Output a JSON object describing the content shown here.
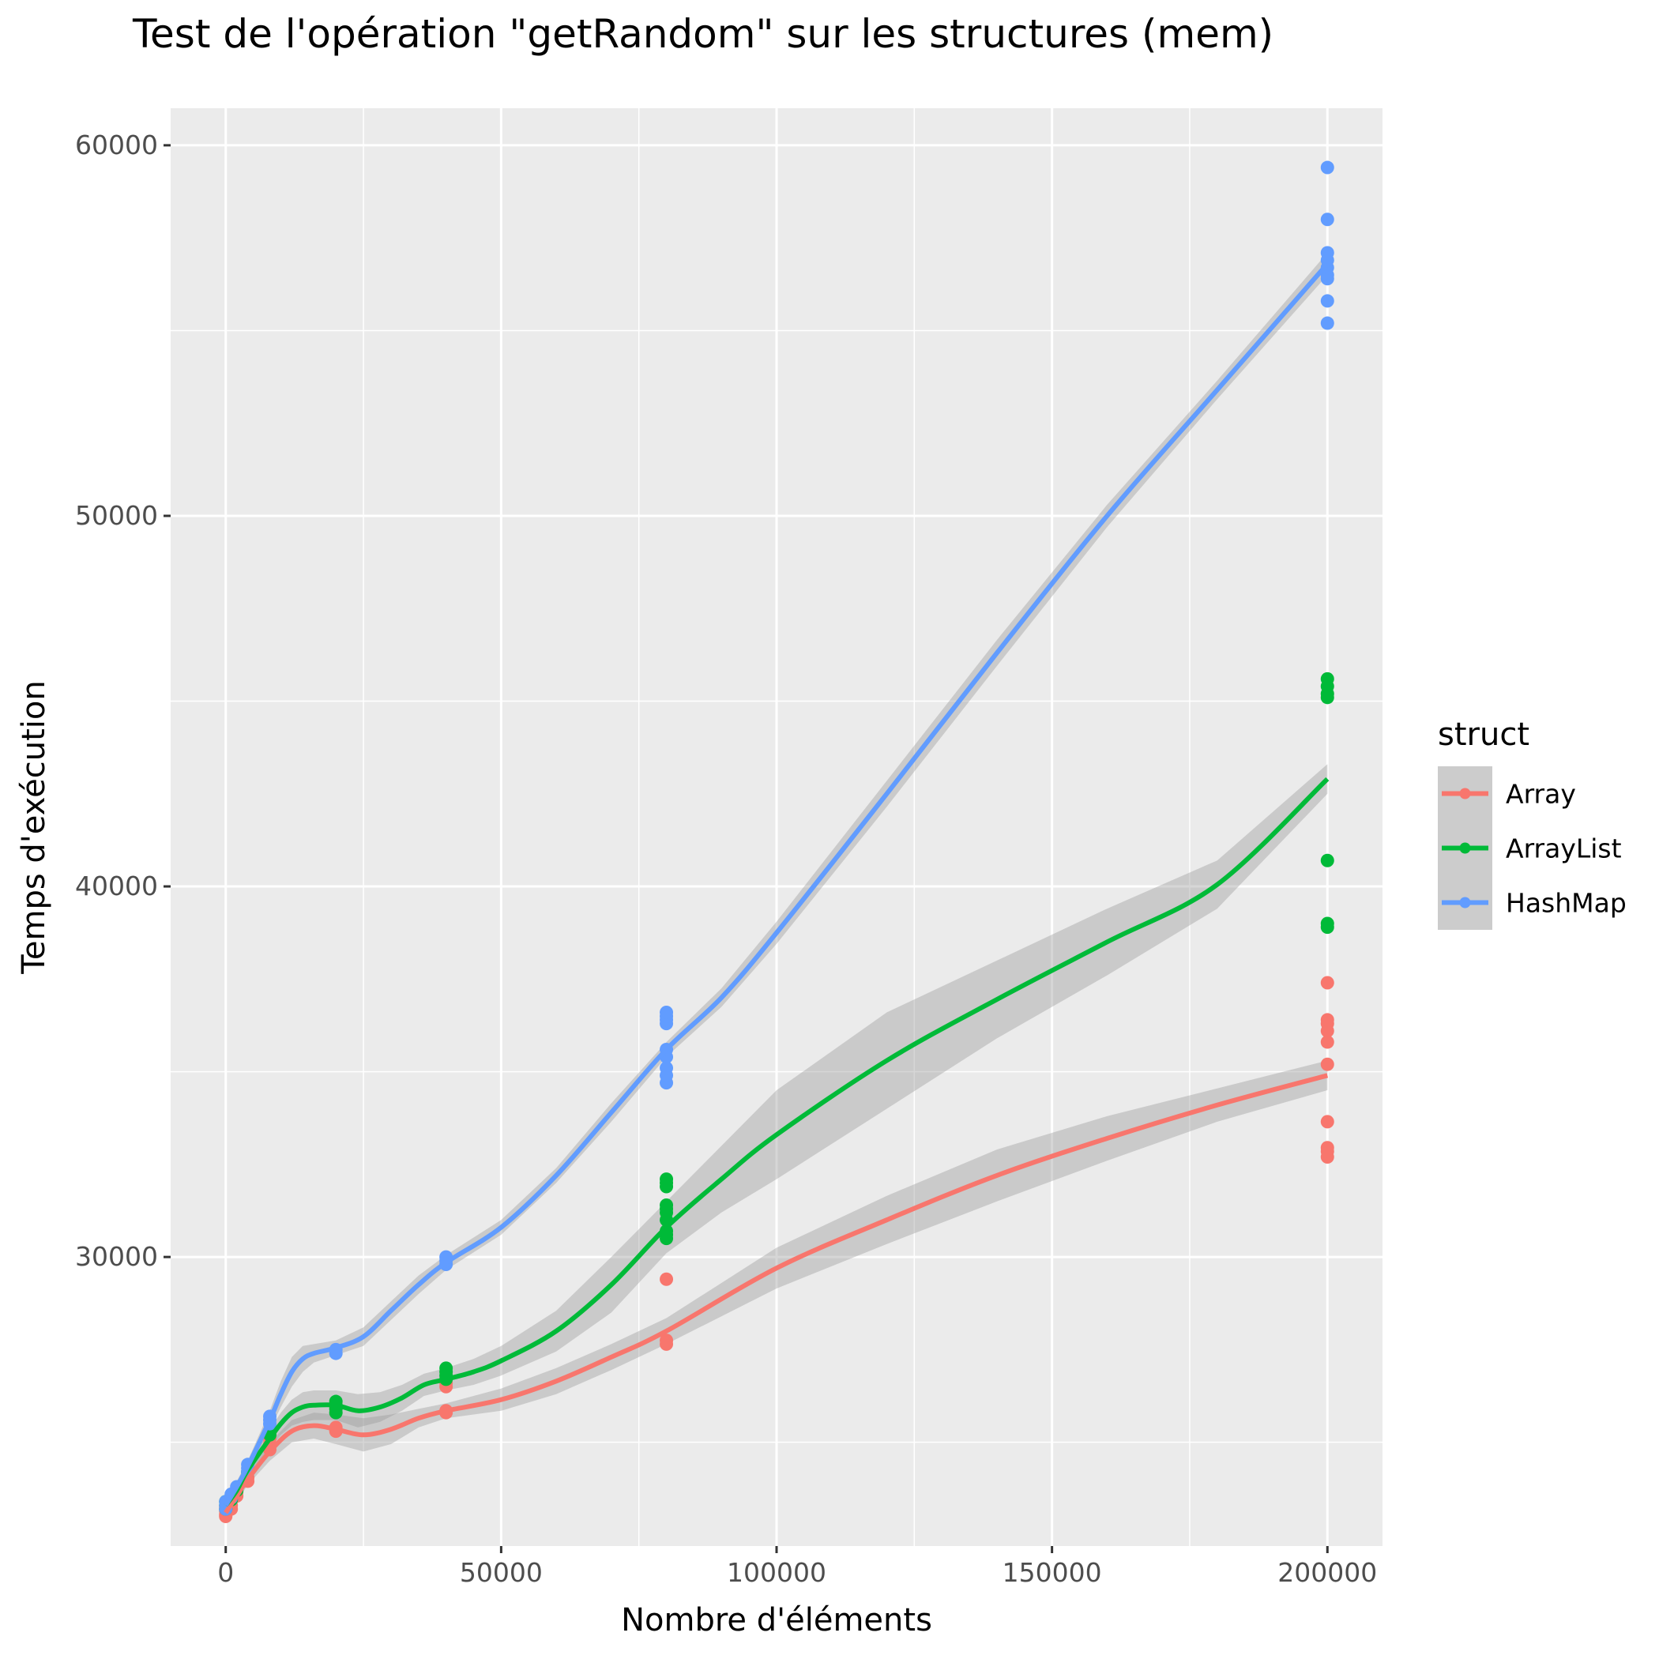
{
  "chart_data": {
    "type": "scatter",
    "title": "Test de l'opération \"getRandom\" sur les structures (mem)",
    "xlabel": "Nombre d'éléments",
    "ylabel": "Temps d'exécution",
    "xlim": [
      -10000,
      210000
    ],
    "ylim": [
      22200,
      61000
    ],
    "x_ticks": [
      0,
      50000,
      100000,
      150000,
      200000
    ],
    "x_tick_labels": [
      "0",
      "50000",
      "100000",
      "150000",
      "200000"
    ],
    "y_ticks": [
      30000,
      40000,
      50000,
      60000
    ],
    "y_tick_labels": [
      "30000",
      "40000",
      "50000",
      "60000"
    ],
    "grid": true,
    "legend": {
      "title": "struct",
      "position": "right"
    },
    "series": [
      {
        "name": "Array",
        "color": "#F8766D",
        "points": [
          [
            0,
            23000
          ],
          [
            0,
            23050
          ],
          [
            0,
            23150
          ],
          [
            0,
            23250
          ],
          [
            1000,
            23200
          ],
          [
            1000,
            23300
          ],
          [
            2000,
            23550
          ],
          [
            2000,
            23650
          ],
          [
            4000,
            23950
          ],
          [
            4000,
            24050
          ],
          [
            8000,
            24800
          ],
          [
            8000,
            24950
          ],
          [
            8000,
            25100
          ],
          [
            20000,
            25300
          ],
          [
            20000,
            25400
          ],
          [
            40000,
            25800
          ],
          [
            40000,
            25850
          ],
          [
            40000,
            26500
          ],
          [
            40000,
            26600
          ],
          [
            80000,
            27650
          ],
          [
            80000,
            27750
          ],
          [
            80000,
            29400
          ],
          [
            200000,
            32700
          ],
          [
            200000,
            32850
          ],
          [
            200000,
            32950
          ],
          [
            200000,
            33650
          ],
          [
            200000,
            35200
          ],
          [
            200000,
            35800
          ],
          [
            200000,
            36100
          ],
          [
            200000,
            36300
          ],
          [
            200000,
            36400
          ],
          [
            200000,
            37400
          ]
        ],
        "smooth": [
          [
            0,
            23100
          ],
          [
            2000,
            23550
          ],
          [
            4000,
            24000
          ],
          [
            8000,
            24750
          ],
          [
            12000,
            25300
          ],
          [
            16000,
            25450
          ],
          [
            20000,
            25350
          ],
          [
            25000,
            25200
          ],
          [
            30000,
            25350
          ],
          [
            35000,
            25650
          ],
          [
            40000,
            25850
          ],
          [
            50000,
            26150
          ],
          [
            60000,
            26650
          ],
          [
            70000,
            27300
          ],
          [
            80000,
            28000
          ],
          [
            100000,
            29700
          ],
          [
            120000,
            31000
          ],
          [
            140000,
            32200
          ],
          [
            160000,
            33200
          ],
          [
            180000,
            34100
          ],
          [
            200000,
            34900
          ]
        ],
        "band": [
          [
            0,
            22950,
            23250
          ],
          [
            2000,
            23400,
            23700
          ],
          [
            4000,
            23850,
            24150
          ],
          [
            8000,
            24500,
            25000
          ],
          [
            12000,
            25000,
            25600
          ],
          [
            16000,
            25100,
            25800
          ],
          [
            20000,
            24950,
            25750
          ],
          [
            25000,
            24750,
            25650
          ],
          [
            30000,
            24950,
            25750
          ],
          [
            35000,
            25400,
            25900
          ],
          [
            40000,
            25650,
            26050
          ],
          [
            50000,
            25850,
            26450
          ],
          [
            60000,
            26300,
            27000
          ],
          [
            70000,
            26950,
            27650
          ],
          [
            80000,
            27650,
            28350
          ],
          [
            100000,
            29150,
            30250
          ],
          [
            120000,
            30350,
            31650
          ],
          [
            140000,
            31500,
            32900
          ],
          [
            160000,
            32600,
            33800
          ],
          [
            180000,
            33650,
            34550
          ],
          [
            200000,
            34500,
            35300
          ]
        ]
      },
      {
        "name": "ArrayList",
        "color": "#00BA38",
        "points": [
          [
            0,
            23200
          ],
          [
            0,
            23300
          ],
          [
            0,
            23400
          ],
          [
            1000,
            23450
          ],
          [
            2000,
            23700
          ],
          [
            4000,
            24200
          ],
          [
            8000,
            25200
          ],
          [
            8000,
            25300
          ],
          [
            20000,
            25800
          ],
          [
            20000,
            25900
          ],
          [
            20000,
            26000
          ],
          [
            20000,
            26100
          ],
          [
            40000,
            26700
          ],
          [
            40000,
            26800
          ],
          [
            40000,
            26900
          ],
          [
            40000,
            27000
          ],
          [
            80000,
            30500
          ],
          [
            80000,
            30600
          ],
          [
            80000,
            30700
          ],
          [
            80000,
            31000
          ],
          [
            80000,
            31200
          ],
          [
            80000,
            31300
          ],
          [
            80000,
            31400
          ],
          [
            80000,
            31900
          ],
          [
            80000,
            32000
          ],
          [
            80000,
            32100
          ],
          [
            200000,
            38900
          ],
          [
            200000,
            39000
          ],
          [
            200000,
            40700
          ],
          [
            200000,
            45100
          ],
          [
            200000,
            45200
          ],
          [
            200000,
            45400
          ],
          [
            200000,
            45600
          ]
        ],
        "smooth": [
          [
            0,
            23300
          ],
          [
            2000,
            23700
          ],
          [
            4000,
            24250
          ],
          [
            8000,
            25100
          ],
          [
            10000,
            25500
          ],
          [
            12000,
            25800
          ],
          [
            14000,
            25950
          ],
          [
            16000,
            26000
          ],
          [
            20000,
            26000
          ],
          [
            24000,
            25850
          ],
          [
            28000,
            25950
          ],
          [
            32000,
            26200
          ],
          [
            36000,
            26550
          ],
          [
            40000,
            26700
          ],
          [
            45000,
            26900
          ],
          [
            50000,
            27200
          ],
          [
            60000,
            28000
          ],
          [
            70000,
            29250
          ],
          [
            80000,
            30800
          ],
          [
            90000,
            32100
          ],
          [
            100000,
            33300
          ],
          [
            120000,
            35300
          ],
          [
            140000,
            36950
          ],
          [
            160000,
            38500
          ],
          [
            180000,
            40050
          ],
          [
            200000,
            42900
          ]
        ],
        "band": [
          [
            0,
            23150,
            23450
          ],
          [
            2000,
            23550,
            23850
          ],
          [
            4000,
            24100,
            24400
          ],
          [
            8000,
            24850,
            25350
          ],
          [
            10000,
            25200,
            25800
          ],
          [
            12000,
            25450,
            26150
          ],
          [
            14000,
            25550,
            26350
          ],
          [
            16000,
            25600,
            26400
          ],
          [
            20000,
            25600,
            26400
          ],
          [
            24000,
            25400,
            26300
          ],
          [
            28000,
            25550,
            26350
          ],
          [
            32000,
            25850,
            26550
          ],
          [
            36000,
            26250,
            26850
          ],
          [
            40000,
            26400,
            27000
          ],
          [
            45000,
            26550,
            27250
          ],
          [
            50000,
            26800,
            27600
          ],
          [
            60000,
            27450,
            28550
          ],
          [
            70000,
            28500,
            30000
          ],
          [
            80000,
            30100,
            31500
          ],
          [
            90000,
            31200,
            33000
          ],
          [
            100000,
            32100,
            34500
          ],
          [
            120000,
            34000,
            36600
          ],
          [
            140000,
            35900,
            38000
          ],
          [
            160000,
            37600,
            39400
          ],
          [
            180000,
            39400,
            40700
          ],
          [
            200000,
            42500,
            43300
          ]
        ]
      },
      {
        "name": "HashMap",
        "color": "#619CFF",
        "points": [
          [
            0,
            23200
          ],
          [
            0,
            23300
          ],
          [
            0,
            23400
          ],
          [
            1000,
            23500
          ],
          [
            1000,
            23600
          ],
          [
            2000,
            23800
          ],
          [
            4000,
            24200
          ],
          [
            4000,
            24300
          ],
          [
            4000,
            24400
          ],
          [
            8000,
            25500
          ],
          [
            8000,
            25600
          ],
          [
            8000,
            25700
          ],
          [
            20000,
            27400
          ],
          [
            20000,
            27500
          ],
          [
            40000,
            29800
          ],
          [
            40000,
            29900
          ],
          [
            40000,
            30000
          ],
          [
            80000,
            34700
          ],
          [
            80000,
            34900
          ],
          [
            80000,
            35100
          ],
          [
            80000,
            35400
          ],
          [
            80000,
            35600
          ],
          [
            80000,
            36300
          ],
          [
            80000,
            36400
          ],
          [
            80000,
            36500
          ],
          [
            80000,
            36600
          ],
          [
            200000,
            55200
          ],
          [
            200000,
            55800
          ],
          [
            200000,
            56400
          ],
          [
            200000,
            56500
          ],
          [
            200000,
            56700
          ],
          [
            200000,
            56900
          ],
          [
            200000,
            57100
          ],
          [
            200000,
            58000
          ],
          [
            200000,
            59400
          ]
        ],
        "smooth": [
          [
            0,
            23300
          ],
          [
            2000,
            23800
          ],
          [
            4000,
            24350
          ],
          [
            8000,
            25600
          ],
          [
            10000,
            26300
          ],
          [
            12000,
            26900
          ],
          [
            14000,
            27250
          ],
          [
            16000,
            27400
          ],
          [
            20000,
            27550
          ],
          [
            25000,
            27850
          ],
          [
            30000,
            28550
          ],
          [
            35000,
            29250
          ],
          [
            40000,
            29850
          ],
          [
            50000,
            30800
          ],
          [
            60000,
            32200
          ],
          [
            70000,
            33900
          ],
          [
            80000,
            35600
          ],
          [
            90000,
            37000
          ],
          [
            100000,
            38750
          ],
          [
            120000,
            42500
          ],
          [
            140000,
            46300
          ],
          [
            160000,
            50000
          ],
          [
            180000,
            53400
          ],
          [
            200000,
            56800
          ]
        ],
        "band": [
          [
            0,
            23100,
            23500
          ],
          [
            2000,
            23650,
            23950
          ],
          [
            4000,
            24200,
            24500
          ],
          [
            8000,
            25350,
            25850
          ],
          [
            10000,
            25950,
            26650
          ],
          [
            12000,
            26500,
            27300
          ],
          [
            14000,
            26900,
            27600
          ],
          [
            16000,
            27150,
            27650
          ],
          [
            20000,
            27350,
            27750
          ],
          [
            25000,
            27600,
            28100
          ],
          [
            30000,
            28300,
            28800
          ],
          [
            35000,
            29000,
            29500
          ],
          [
            40000,
            29650,
            30050
          ],
          [
            50000,
            30600,
            31000
          ],
          [
            60000,
            32000,
            32400
          ],
          [
            70000,
            33650,
            34150
          ],
          [
            80000,
            35400,
            35800
          ],
          [
            90000,
            36750,
            37250
          ],
          [
            100000,
            38450,
            39050
          ],
          [
            120000,
            42150,
            42850
          ],
          [
            140000,
            45950,
            46650
          ],
          [
            160000,
            49700,
            50300
          ],
          [
            180000,
            53150,
            53650
          ],
          [
            200000,
            56500,
            57100
          ]
        ]
      }
    ]
  }
}
